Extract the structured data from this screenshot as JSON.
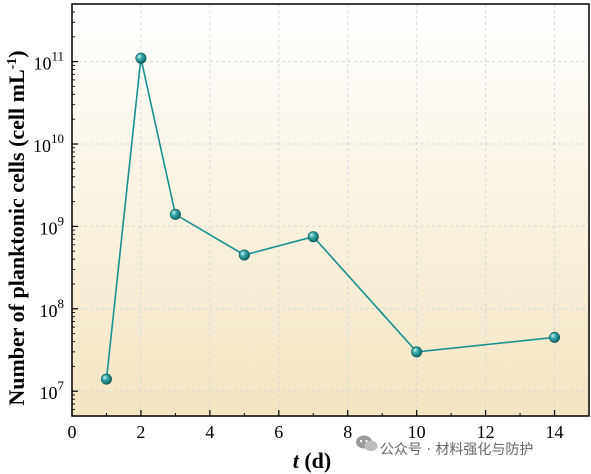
{
  "chart_data": {
    "type": "line",
    "x": [
      1,
      2,
      3,
      5,
      7,
      10,
      14
    ],
    "series": [
      {
        "values": [
          14000000,
          110000000000,
          1400000000,
          450000000,
          750000000,
          30000000,
          45000000
        ]
      }
    ],
    "xlabel_italic": "t",
    "xlabel_rest": " (d)",
    "ylabel_main": "Number of planktonic cells (cell mL",
    "ylabel_sup": "-1",
    "ylabel_close": ")",
    "xlim": [
      0,
      15
    ],
    "ylim": [
      5000000,
      500000000000
    ],
    "y_scale": "log",
    "x_ticks": [
      0,
      2,
      4,
      6,
      8,
      10,
      12,
      14
    ],
    "y_ticks": [
      {
        "exp": 7,
        "base": "10",
        "sup": "7"
      },
      {
        "exp": 8,
        "base": "10",
        "sup": "8"
      },
      {
        "exp": 9,
        "base": "10",
        "sup": "9"
      },
      {
        "exp": 10,
        "base": "10",
        "sup": "10"
      },
      {
        "exp": 11,
        "base": "10",
        "sup": "11"
      }
    ],
    "grid": true,
    "colors": {
      "line": "#1a9090",
      "marker": "#148a8a",
      "background_top": "#ffffff",
      "background_bottom": "#f4e6c4",
      "grid": "#d8d8d8"
    }
  },
  "watermark": {
    "text": "公众号 · 材料强化与防护",
    "icon": "wechat-icon"
  }
}
